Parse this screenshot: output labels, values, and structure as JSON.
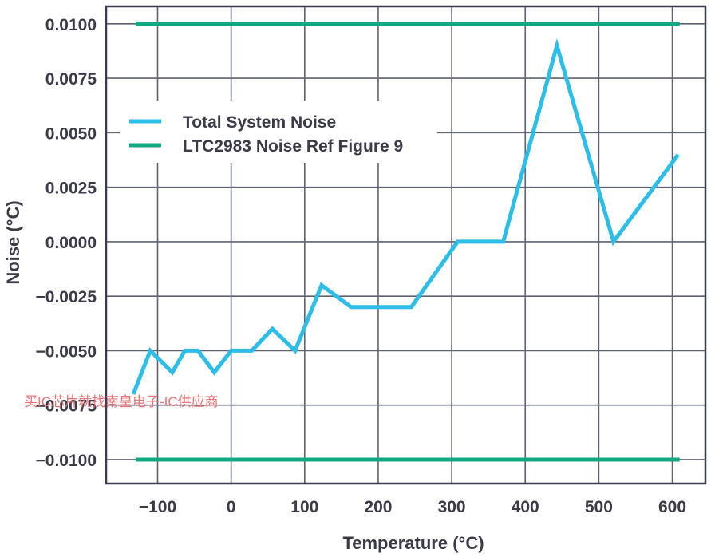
{
  "chart_data": {
    "type": "line",
    "xlabel": "Temperature (°C)",
    "ylabel": "Noise (°C)",
    "xlim": [
      -170,
      645
    ],
    "ylim": [
      -0.0111,
      0.0108
    ],
    "x_ticks": [
      -100,
      0,
      100,
      200,
      300,
      400,
      500,
      600
    ],
    "x_tick_labels": [
      "−100",
      "0",
      "100",
      "200",
      "300",
      "400",
      "500",
      "600"
    ],
    "y_ticks": [
      0.01,
      0.0075,
      0.005,
      0.0025,
      0.0,
      -0.0025,
      -0.005,
      -0.0075,
      -0.01
    ],
    "y_tick_labels": [
      "0.0100",
      "0.0075",
      "0.0050",
      "0.0025",
      "0.0000",
      "−0.0025",
      "−0.0050",
      "−0.0075",
      "−0.0100"
    ],
    "grid": true,
    "legend_position": "upper-left",
    "series": [
      {
        "name": "Total System Noise",
        "color": "#2cbde9",
        "x": [
          -133,
          -110,
          -80,
          -63,
          -45,
          -23,
          0,
          28,
          56,
          87,
          123,
          163,
          205,
          245,
          308,
          370,
          443,
          520,
          608
        ],
        "y": [
          -0.007,
          -0.005,
          -0.006,
          -0.005,
          -0.005,
          -0.006,
          -0.005,
          -0.005,
          -0.004,
          -0.005,
          -0.002,
          -0.003,
          -0.003,
          -0.003,
          0.0,
          0.0,
          0.009,
          0.0,
          0.004
        ]
      },
      {
        "name": "LTC2983 Noise Ref Figure 9",
        "color": "#12a882",
        "x": [
          -130,
          610
        ],
        "y": [
          0.01,
          0.01
        ]
      },
      {
        "name": "",
        "color": "#12a882",
        "x": [
          -130,
          610
        ],
        "y": [
          -0.01,
          -0.01
        ]
      }
    ]
  },
  "watermark": "买IC芯片就找南皇电子-IC供应商"
}
